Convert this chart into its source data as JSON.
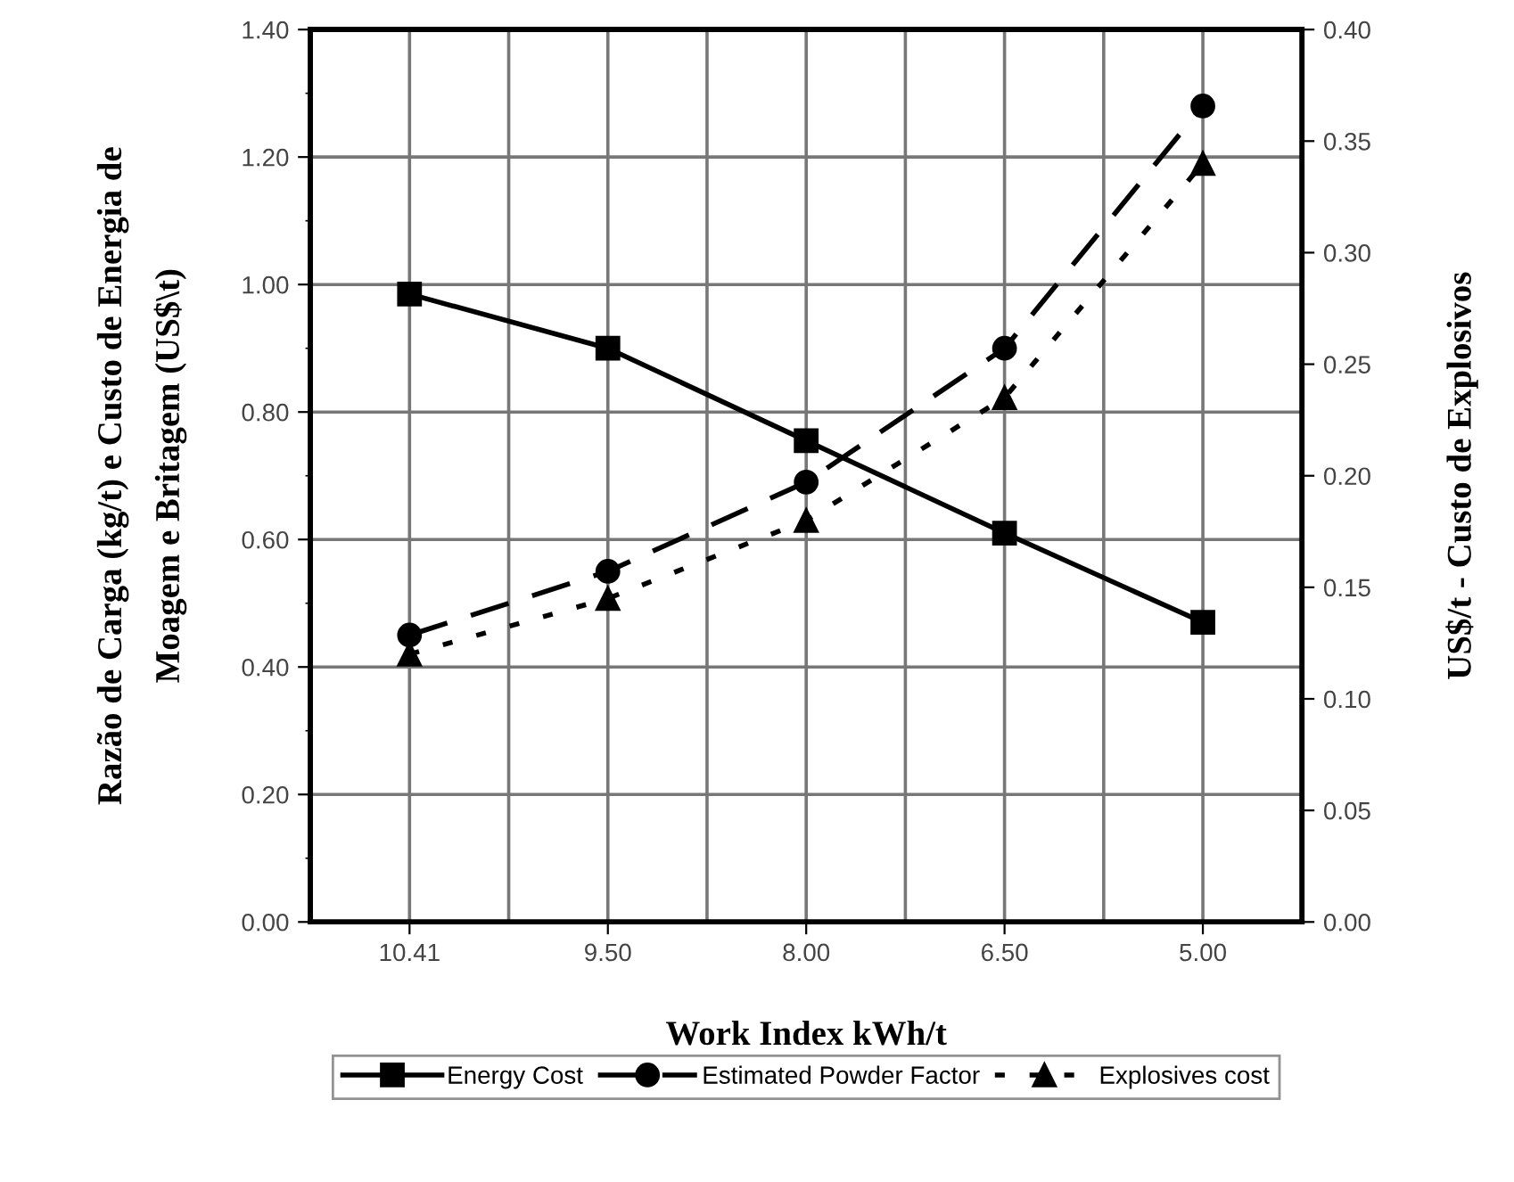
{
  "chart_data": {
    "type": "line",
    "xlabel": "Work Index kWh/t",
    "ylabel": "Razão de Carga (kg/t) e Custo de Energia de\nMoagem e Britagem (US$\\t)",
    "y2label": "US$/t - Custo de Explosivos",
    "categories": [
      "10.41",
      "9.50",
      "8.00",
      "6.50",
      "5.00"
    ],
    "ylim": [
      0,
      1.4
    ],
    "yticks": [
      {
        "value": 0,
        "label": "0.00"
      },
      {
        "value": 0.2,
        "label": "0.20"
      },
      {
        "value": 0.4,
        "label": "0.40"
      },
      {
        "value": 0.6,
        "label": "0.60"
      },
      {
        "value": 0.8,
        "label": "0.80"
      },
      {
        "value": 1.0,
        "label": "1.00"
      },
      {
        "value": 1.2,
        "label": "1.20"
      },
      {
        "value": 1.4,
        "label": "1.40"
      }
    ],
    "y2lim": [
      0,
      0.4
    ],
    "y2ticks": [
      {
        "value": 0,
        "label": "0.00"
      },
      {
        "value": 0.05,
        "label": "0.05"
      },
      {
        "value": 0.1,
        "label": "0.10"
      },
      {
        "value": 0.15,
        "label": "0.15"
      },
      {
        "value": 0.2,
        "label": "0.20"
      },
      {
        "value": 0.25,
        "label": "0.25"
      },
      {
        "value": 0.3,
        "label": "0.30"
      },
      {
        "value": 0.35,
        "label": "0.35"
      },
      {
        "value": 0.4,
        "label": "0.40"
      }
    ],
    "grid": true,
    "legend": "bottom",
    "series": [
      {
        "name": "Energy Cost",
        "color": "#000000",
        "marker": "square",
        "line_style": "solid",
        "values": [
          0.985,
          0.9,
          0.755,
          0.61,
          0.47
        ]
      },
      {
        "name": "Estimated Powder Factor",
        "color": "#000000",
        "marker": "circle",
        "line_style": "dashed",
        "values": [
          0.45,
          0.55,
          0.69,
          0.9,
          1.28
        ]
      },
      {
        "name": "Explosives cost",
        "color": "#000000",
        "marker": "triangle",
        "line_style": "dotted",
        "axis": "y2",
        "values": [
          0.12,
          0.145,
          0.18,
          0.235,
          0.34
        ]
      }
    ]
  }
}
